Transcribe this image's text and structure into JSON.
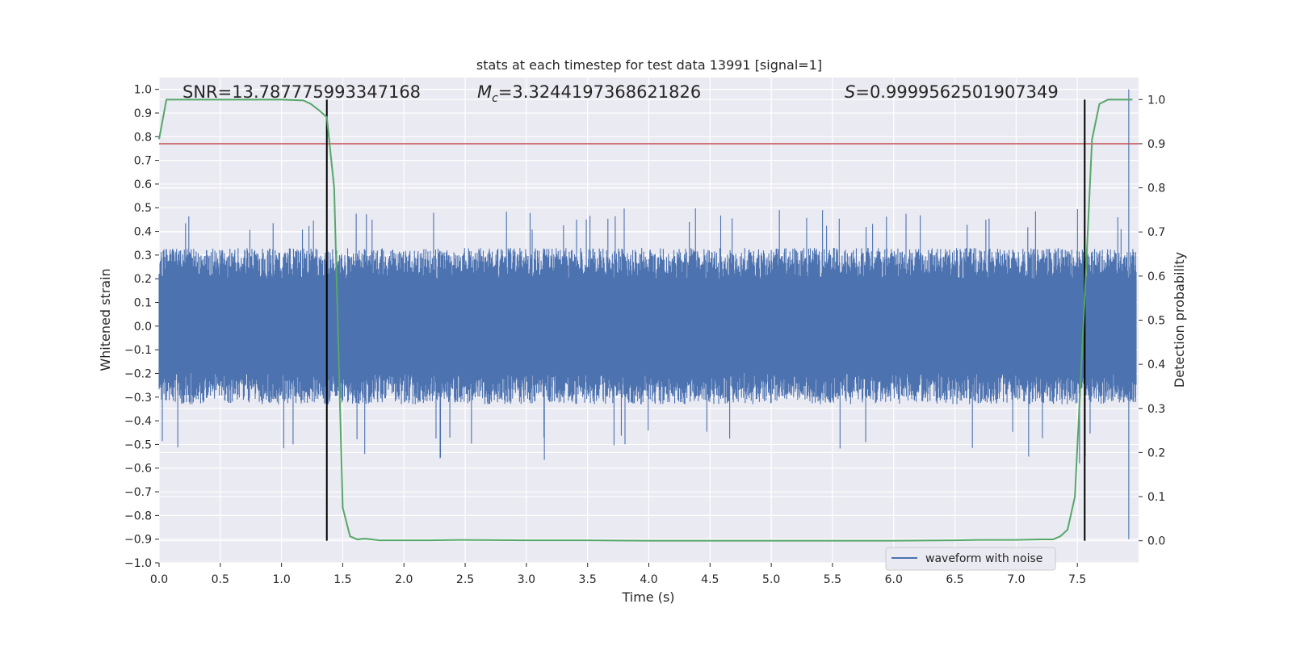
{
  "chart_data": {
    "type": "line",
    "title": "stats at each timestep for test data 13991 [signal=1]",
    "xlabel": "Time (s)",
    "ylabel": "Whitened strain",
    "y2label": "Detection probability",
    "xlim": [
      0.0,
      8.0
    ],
    "ylim": [
      -1.0,
      1.05
    ],
    "y2lim": [
      -0.05,
      1.05
    ],
    "xticks": [
      0.0,
      0.5,
      1.0,
      1.5,
      2.0,
      2.5,
      3.0,
      3.5,
      4.0,
      4.5,
      5.0,
      5.5,
      6.0,
      6.5,
      7.0,
      7.5
    ],
    "xtick_labels": [
      "0.0",
      "0.5",
      "1.0",
      "1.5",
      "2.0",
      "2.5",
      "3.0",
      "3.5",
      "4.0",
      "4.5",
      "5.0",
      "5.5",
      "6.0",
      "6.5",
      "7.0",
      "7.5"
    ],
    "yticks": [
      1.0,
      0.9,
      0.8,
      0.7,
      0.6,
      0.5,
      0.4,
      0.3,
      0.2,
      0.1,
      0.0,
      -0.1,
      -0.2,
      -0.3,
      -0.4,
      -0.5,
      -0.6,
      -0.7,
      -0.8,
      -0.9,
      -1.0
    ],
    "ytick_labels": [
      "1.0",
      "0.9",
      "0.8",
      "0.7",
      "0.6",
      "0.5",
      "0.4",
      "0.3",
      "0.2",
      "0.1",
      "0.0",
      "−0.1",
      "−0.2",
      "−0.3",
      "−0.4",
      "−0.5",
      "−0.6",
      "−0.7",
      "−0.8",
      "−0.9",
      "−1.0"
    ],
    "y2ticks": [
      1.0,
      0.9,
      0.8,
      0.7,
      0.6,
      0.5,
      0.4,
      0.3,
      0.2,
      0.1,
      0.0
    ],
    "y2tick_labels": [
      "1.0",
      "0.9",
      "0.8",
      "0.7",
      "0.6",
      "0.5",
      "0.4",
      "0.3",
      "0.2",
      "0.1",
      "0.0"
    ],
    "annotations": {
      "snr": "SNR=13.787775993347168",
      "mc_symbol": "M",
      "mc_sub": "c",
      "mc_value": "=3.3244197368621826",
      "s_symbol": "S",
      "s_value": "=0.9999562501907349"
    },
    "legend": {
      "entry": "waveform with noise",
      "position": "lower-right"
    },
    "series": [
      {
        "name": "waveform with noise",
        "axis": "left",
        "color": "#4c72b0",
        "kind": "noise",
        "t_range": [
          0.0,
          7.98
        ],
        "envelope_typical": 0.3,
        "envelope_peak_pos": 0.5,
        "envelope_peak_neg": -0.58,
        "final_spike": {
          "t": 7.92,
          "max": 1.0,
          "min": -0.9
        }
      },
      {
        "name": "detection probability",
        "axis": "right",
        "color": "#55a868",
        "x": [
          0.0,
          0.06,
          0.5,
          1.0,
          1.18,
          1.24,
          1.31,
          1.37,
          1.43,
          1.5,
          1.56,
          1.62,
          1.68,
          1.8,
          2.2,
          2.45,
          3.0,
          3.5,
          4.0,
          5.0,
          6.0,
          6.5,
          6.7,
          7.0,
          7.2,
          7.3,
          7.36,
          7.42,
          7.48,
          7.56,
          7.62,
          7.68,
          7.75,
          7.95
        ],
        "values": [
          0.91,
          1.0,
          1.0,
          1.0,
          0.998,
          0.99,
          0.975,
          0.96,
          0.8,
          0.075,
          0.01,
          0.003,
          0.005,
          0.001,
          0.001,
          0.002,
          0.001,
          0.001,
          0.0,
          0.0,
          0.0,
          0.001,
          0.002,
          0.002,
          0.003,
          0.003,
          0.01,
          0.025,
          0.1,
          0.55,
          0.91,
          0.99,
          1.0,
          1.0
        ]
      }
    ],
    "threshold": {
      "axis": "right",
      "value": 0.9,
      "color": "#c44e52"
    },
    "vlines": [
      {
        "x": 1.37,
        "y2_range": [
          0.0,
          1.0
        ],
        "color": "#000000"
      },
      {
        "x": 7.56,
        "y2_range": [
          0.0,
          1.0
        ],
        "color": "#000000"
      }
    ]
  }
}
